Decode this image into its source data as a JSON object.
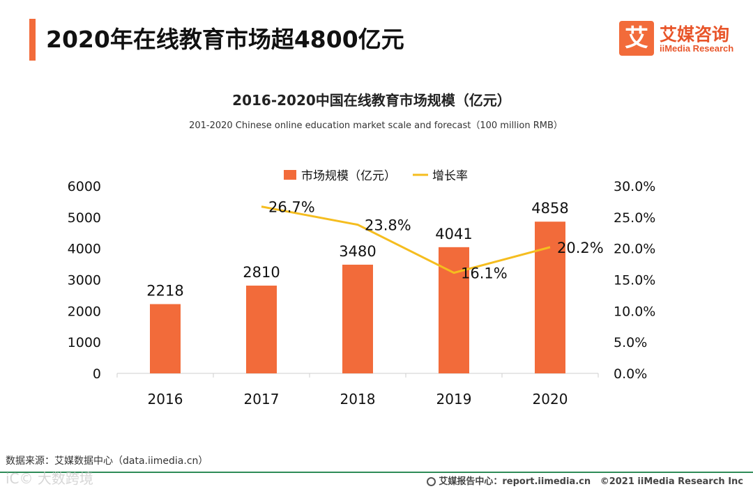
{
  "header": {
    "headline": "2020年在线教育市场超4800亿元"
  },
  "logo": {
    "mark": "艾",
    "name": "艾媒咨询",
    "subtitle": "iiMedia Research",
    "accent_color": "#f26b3a"
  },
  "chart_data": {
    "type": "bar",
    "title": "2016-2020中国在线教育市场规模（亿元）",
    "subtitle": "201-2020 Chinese online education market scale and forecast（100 million RMB）",
    "categories": [
      "2016",
      "2017",
      "2018",
      "2019",
      "2020"
    ],
    "series": [
      {
        "name": "市场规模（亿元）",
        "kind": "bar",
        "axis": "left",
        "color": "#f26b3a",
        "values": [
          2218,
          2810,
          3480,
          4041,
          4858
        ],
        "labels": [
          "2218",
          "2810",
          "3480",
          "4041",
          "4858"
        ]
      },
      {
        "name": "增长率",
        "kind": "line",
        "axis": "right",
        "color": "#f5bd1f",
        "values": [
          null,
          26.7,
          23.8,
          16.1,
          20.2
        ],
        "labels": [
          "",
          "26.7%",
          "23.8%",
          "16.1%",
          "20.2%"
        ]
      }
    ],
    "y_left": {
      "range": [
        0,
        6000
      ],
      "ticks": [
        "0",
        "1000",
        "2000",
        "3000",
        "4000",
        "5000",
        "6000"
      ]
    },
    "y_right": {
      "range": [
        0,
        30
      ],
      "ticks": [
        "0.0%",
        "5.0%",
        "10.0%",
        "15.0%",
        "20.0%",
        "25.0%",
        "30.0%"
      ]
    },
    "legend_position": "top-center",
    "grid": false
  },
  "footer": {
    "source": "数据来源：艾媒数据中心（data.iimedia.cn）",
    "watermark": "iC© 大数跨境",
    "report_site": "艾媒报告中心：report.iimedia.cn",
    "copyright": "©2021 iiMedia Research  Inc"
  }
}
